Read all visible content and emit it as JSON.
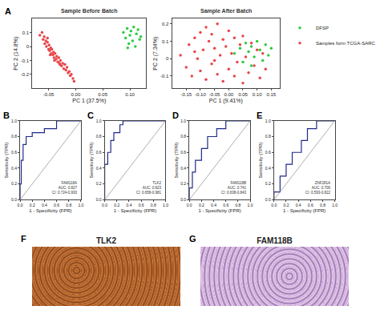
{
  "chart_data": [
    {
      "panel": "A",
      "type": "scatter",
      "title": "Sample Before Batch",
      "x_label": "PC 1 (37.5%)",
      "y_label": "PC 2 (14.8%)",
      "legend": "right",
      "series": [
        {
          "name": "DFSP",
          "color": "#2ecc40",
          "x": [
            0.088,
            0.092,
            0.095,
            0.098,
            0.1,
            0.102,
            0.105,
            0.107,
            0.11,
            0.112,
            0.115,
            0.118,
            0.12,
            0.096
          ],
          "values": [
            0.1,
            0.06,
            0.13,
            0.02,
            0.08,
            0.11,
            0.04,
            0.14,
            0.0,
            0.09,
            0.12,
            0.05,
            0.07,
            -0.01
          ]
        },
        {
          "name": "Samples form TCGA-SARC",
          "color": "#e8474a",
          "x": [
            -0.066,
            -0.062,
            -0.06,
            -0.058,
            -0.057,
            -0.055,
            -0.054,
            -0.052,
            -0.05,
            -0.049,
            -0.048,
            -0.046,
            -0.045,
            -0.044,
            -0.042,
            -0.041,
            -0.04,
            -0.038,
            -0.036,
            -0.035,
            -0.033,
            -0.031,
            -0.03,
            -0.028,
            -0.026,
            -0.024,
            -0.022,
            -0.02,
            -0.018,
            -0.016,
            -0.014,
            -0.012,
            -0.01,
            -0.008,
            -0.005,
            -0.003,
            -0.052,
            -0.047,
            -0.039,
            -0.029
          ],
          "values": [
            0.08,
            0.1,
            0.05,
            0.07,
            0.02,
            0.04,
            0.0,
            0.03,
            -0.02,
            0.01,
            -0.03,
            -0.01,
            -0.05,
            -0.02,
            -0.06,
            -0.04,
            -0.08,
            -0.05,
            -0.09,
            -0.07,
            -0.11,
            -0.08,
            -0.12,
            -0.1,
            -0.14,
            -0.12,
            -0.16,
            -0.13,
            -0.17,
            -0.15,
            -0.19,
            -0.18,
            -0.21,
            -0.2,
            -0.23,
            -0.25,
            0.06,
            -0.06,
            -0.1,
            -0.13
          ]
        }
      ],
      "xlim": [
        -0.08,
        0.13
      ],
      "xticks": [
        -0.05,
        {
          "value": 0,
          "label": "0.00"
        },
        0.05,
        {
          "value": 0.1,
          "label": "0.10"
        }
      ],
      "ylim": [
        -0.3,
        0.2
      ],
      "yticks": [
        -0.2,
        -0.1,
        0,
        0.1
      ]
    },
    {
      "panel": "",
      "type": "scatter",
      "title": "Sample After Batch",
      "x_label": "PC 1 (9.41%)",
      "y_label": "PC 2 (7.34%)",
      "series": [
        {
          "name": "DFSP",
          "color": "#2ecc40",
          "x": [
            0.02,
            0.04,
            0.05,
            0.06,
            0.07,
            0.08,
            0.09,
            0.1,
            0.11,
            0.12,
            0.13,
            0.14,
            0.15,
            0.08
          ],
          "values": [
            0.03,
            0.06,
            -0.02,
            0.09,
            0.04,
            0.07,
            0.01,
            0.1,
            0.05,
            -0.01,
            0.08,
            0.02,
            0.06,
            -0.04
          ]
        },
        {
          "name": "Samples form TCGA-SARC",
          "color": "#e8474a",
          "x": [
            -0.17,
            -0.15,
            -0.14,
            -0.13,
            -0.12,
            -0.11,
            -0.1,
            -0.1,
            -0.09,
            -0.08,
            -0.08,
            -0.07,
            -0.06,
            -0.06,
            -0.05,
            -0.04,
            -0.04,
            -0.03,
            -0.02,
            -0.02,
            -0.01,
            0.0,
            0.0,
            0.01,
            0.02,
            0.02,
            0.03,
            0.04,
            0.05,
            0.05,
            0.06,
            0.07,
            0.08,
            0.09,
            0.1,
            0.11,
            0.12,
            0.13,
            -0.12,
            -0.05
          ],
          "values": [
            0.02,
            -0.05,
            0.08,
            -0.1,
            0.12,
            0.0,
            0.15,
            -0.07,
            0.05,
            0.18,
            -0.12,
            0.1,
            -0.03,
            0.14,
            0.06,
            -0.09,
            0.2,
            0.02,
            0.11,
            -0.13,
            0.07,
            -0.06,
            0.16,
            0.03,
            -0.1,
            0.12,
            -0.02,
            0.08,
            -0.14,
            0.13,
            0.01,
            -0.08,
            0.09,
            -0.04,
            0.05,
            -0.11,
            0.03,
            -0.06,
            0.04,
            -0.01
          ]
        }
      ],
      "xlim": [
        -0.2,
        0.18
      ],
      "xticks": [
        -0.15,
        {
          "value": -0.1,
          "label": "-0.10"
        },
        -0.05,
        {
          "value": 0,
          "label": "0.00"
        },
        0.05,
        {
          "value": 0.1,
          "label": "0.10"
        },
        0.15
      ],
      "ylim": [
        -0.17,
        0.23
      ],
      "yticks": [
        -0.1,
        0,
        0.1,
        0.2
      ]
    },
    {
      "panel": "B",
      "type": "line",
      "x_label": "1 - Specificity (FPR)",
      "y_label": "Sensitivity (TPR)",
      "annotation": [
        "FAM118A",
        "AUC: 0.827",
        "CI: 0.724-0.930"
      ],
      "series": [
        {
          "color": "#1f2a8a",
          "x": [
            0,
            0,
            0.02,
            0.02,
            0.05,
            0.05,
            0.1,
            0.1,
            0.2,
            0.2,
            0.4,
            0.4,
            0.6,
            0.6,
            1
          ],
          "values": [
            0,
            0.2,
            0.2,
            0.5,
            0.5,
            0.7,
            0.7,
            0.8,
            0.8,
            0.85,
            0.85,
            0.9,
            0.9,
            1,
            1
          ]
        }
      ],
      "xlim": [
        0,
        1
      ],
      "xticks": [
        {
          "value": 0,
          "label": "0.0"
        },
        0.2,
        0.4,
        0.6,
        0.8,
        {
          "value": 1,
          "label": "1.0"
        }
      ],
      "ylim": [
        0,
        1
      ],
      "yticks": [
        {
          "value": 0,
          "label": "0.0"
        },
        0.2,
        0.4,
        0.6,
        0.8,
        {
          "value": 1,
          "label": "1.0"
        }
      ]
    },
    {
      "panel": "C",
      "type": "line",
      "x_label": "1 - Specificity (FPR)",
      "y_label": "Sensitivity (TPR)",
      "annotation": [
        "TLK2",
        "AUC: 0.823",
        "CI: 0.658-0.981"
      ],
      "series": [
        {
          "color": "#1f2a8a",
          "x": [
            0,
            0,
            0.05,
            0.05,
            0.1,
            0.1,
            0.15,
            0.15,
            0.25,
            0.25,
            0.3,
            0.3,
            1
          ],
          "values": [
            0,
            0.45,
            0.45,
            0.6,
            0.6,
            0.75,
            0.75,
            0.85,
            0.85,
            0.95,
            0.95,
            1,
            1
          ]
        }
      ],
      "xlim": [
        0,
        1
      ],
      "xticks": [
        {
          "value": 0,
          "label": "0.0"
        },
        0.2,
        0.4,
        0.6,
        0.8,
        {
          "value": 1,
          "label": "1.0"
        }
      ],
      "ylim": [
        0,
        1
      ],
      "yticks": [
        {
          "value": 0,
          "label": "0.0"
        },
        0.2,
        0.4,
        0.6,
        0.8,
        {
          "value": 1,
          "label": "1.0"
        }
      ]
    },
    {
      "panel": "D",
      "type": "line",
      "x_label": "1 - Specificity (FPR)",
      "y_label": "Sensitivity (TPR)",
      "annotation": [
        "FAM118B",
        "AUC: 0.741",
        "CI: 0.638-0.843"
      ],
      "series": [
        {
          "color": "#1f2a8a",
          "x": [
            0,
            0,
            0.05,
            0.05,
            0.1,
            0.1,
            0.2,
            0.2,
            0.3,
            0.3,
            0.45,
            0.45,
            0.6,
            0.6,
            1
          ],
          "values": [
            0,
            0.15,
            0.15,
            0.35,
            0.35,
            0.5,
            0.5,
            0.65,
            0.65,
            0.8,
            0.8,
            0.9,
            0.9,
            1,
            1
          ]
        }
      ],
      "xlim": [
        0,
        1
      ],
      "xticks": [
        {
          "value": 0,
          "label": "0.0"
        },
        0.2,
        0.4,
        0.6,
        0.8,
        {
          "value": 1,
          "label": "1.0"
        }
      ],
      "ylim": [
        0,
        1
      ],
      "yticks": [
        {
          "value": 0,
          "label": "0.0"
        },
        0.2,
        0.4,
        0.6,
        0.8,
        {
          "value": 1,
          "label": "1.0"
        }
      ]
    },
    {
      "panel": "E",
      "type": "line",
      "x_label": "1 - Specificity (FPR)",
      "y_label": "Sensitivity (TPR)",
      "annotation": [
        "ZNF281A",
        "AUC: 0.706",
        "CI: 0.593-0.822"
      ],
      "series": [
        {
          "color": "#1f2a8a",
          "x": [
            0,
            0,
            0.1,
            0.1,
            0.2,
            0.2,
            0.3,
            0.3,
            0.45,
            0.45,
            0.55,
            0.55,
            0.7,
            0.7,
            1
          ],
          "values": [
            0,
            0.1,
            0.1,
            0.3,
            0.3,
            0.45,
            0.45,
            0.6,
            0.6,
            0.75,
            0.75,
            0.9,
            0.9,
            1,
            1
          ]
        }
      ],
      "xlim": [
        0,
        1
      ],
      "xticks": [
        {
          "value": 0,
          "label": "0.0"
        },
        0.2,
        0.4,
        0.6,
        0.8,
        {
          "value": 1,
          "label": "1.0"
        }
      ],
      "ylim": [
        0,
        1
      ],
      "yticks": [
        {
          "value": 0,
          "label": "0.0"
        },
        0.2,
        0.4,
        0.6,
        0.8,
        {
          "value": 1,
          "label": "1.0"
        }
      ]
    }
  ],
  "images": [
    {
      "panel": "F",
      "label": "TLK2"
    },
    {
      "panel": "G",
      "label": "FAM118B"
    }
  ]
}
